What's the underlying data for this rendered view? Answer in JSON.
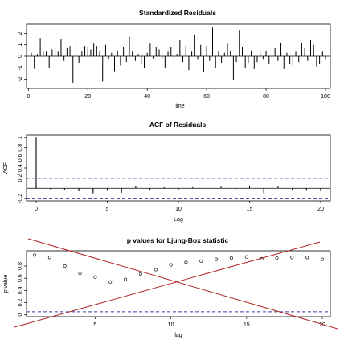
{
  "chart_data": [
    {
      "type": "line",
      "title": "Standardized Residuals",
      "xlabel": "Time",
      "ylabel": "",
      "xlim": [
        1,
        100
      ],
      "ylim": [
        -2.8,
        2.8
      ],
      "x_ticks": [
        0,
        20,
        40,
        60,
        80,
        100
      ],
      "y_ticks": [
        -2,
        -1,
        0,
        1,
        2
      ],
      "style": "vertical spikes from zero with horizontal zero line",
      "x": [
        1,
        2,
        3,
        4,
        5,
        6,
        7,
        8,
        9,
        10,
        11,
        12,
        13,
        14,
        15,
        16,
        17,
        18,
        19,
        20,
        21,
        22,
        23,
        24,
        25,
        26,
        27,
        28,
        29,
        30,
        31,
        32,
        33,
        34,
        35,
        36,
        37,
        38,
        39,
        40,
        41,
        42,
        43,
        44,
        45,
        46,
        47,
        48,
        49,
        50,
        51,
        52,
        53,
        54,
        55,
        56,
        57,
        58,
        59,
        60,
        61,
        62,
        63,
        64,
        65,
        66,
        67,
        68,
        69,
        70,
        71,
        72,
        73,
        74,
        75,
        76,
        77,
        78,
        79,
        80,
        81,
        82,
        83,
        84,
        85,
        86,
        87,
        88,
        89,
        90,
        91,
        92,
        93,
        94,
        95,
        96,
        97,
        98,
        99,
        100
      ],
      "values": [
        0.3,
        -1.1,
        0.2,
        1.6,
        0.5,
        0.4,
        -1.0,
        0.6,
        0.7,
        0.4,
        1.5,
        -0.4,
        0.7,
        0.9,
        -2.3,
        1.2,
        -0.6,
        0.4,
        0.9,
        0.8,
        0.6,
        1.1,
        0.9,
        0.4,
        -2.2,
        1.0,
        -0.3,
        0.3,
        -1.3,
        0.5,
        -0.8,
        0.8,
        -0.5,
        1.7,
        0.4,
        -0.4,
        0.2,
        -0.7,
        -1.0,
        0.3,
        1.1,
        -0.2,
        0.8,
        0.6,
        -0.3,
        -1.0,
        0.4,
        0.8,
        -0.9,
        0.2,
        1.4,
        -0.5,
        0.9,
        -1.2,
        0.4,
        1.9,
        -0.3,
        1.0,
        -1.4,
        0.9,
        -0.4,
        2.5,
        -1.0,
        0.4,
        -0.6,
        0.3,
        1.1,
        0.5,
        -2.1,
        -0.5,
        2.3,
        0.8,
        -1.0,
        -0.6,
        0.5,
        -1.1,
        -0.5,
        0.4,
        -0.3,
        0.5,
        -0.7,
        -0.3,
        0.7,
        -0.4,
        1.2,
        -1.1,
        0.3,
        -0.7,
        -0.8,
        0.4,
        -0.5,
        1.2,
        0.7,
        -0.4,
        1.4,
        1.0,
        -0.9,
        -0.7,
        0.4,
        -0.3
      ]
    },
    {
      "type": "bar",
      "title": "ACF of Residuals",
      "xlabel": "Lag",
      "ylabel": "ACF",
      "xlim": [
        0,
        20
      ],
      "ylim": [
        -0.25,
        1.05
      ],
      "x_ticks": [
        0,
        5,
        10,
        15,
        20
      ],
      "y_ticks": [
        -0.2,
        0.2,
        0.4,
        0.6,
        0.8,
        1.0
      ],
      "confidence_bounds": [
        0.196,
        -0.196
      ],
      "bound_line_color": "#3a3aa8",
      "x": [
        0,
        1,
        2,
        3,
        4,
        5,
        6,
        7,
        8,
        9,
        10,
        11,
        12,
        13,
        14,
        15,
        16,
        17,
        18,
        19,
        20
      ],
      "values": [
        1.0,
        -0.02,
        -0.03,
        -0.06,
        -0.1,
        -0.05,
        -0.09,
        0.05,
        -0.04,
        0.02,
        -0.03,
        0.02,
        -0.02,
        0.03,
        -0.02,
        0.04,
        -0.1,
        0.04,
        -0.03,
        -0.05,
        -0.06
      ]
    },
    {
      "type": "scatter",
      "title": "p values for Ljung-Box statistic",
      "xlabel": "lag",
      "ylabel": "p value",
      "xlim": [
        1,
        20
      ],
      "ylim": [
        -0.03,
        1.05
      ],
      "x_ticks": [
        5,
        10,
        15,
        20
      ],
      "y_ticks": [
        0.0,
        0.2,
        0.4,
        0.6,
        0.8
      ],
      "significance_line": 0.05,
      "bound_line_color": "#3a3aa8",
      "marker": "open circle",
      "x": [
        1,
        2,
        3,
        4,
        5,
        6,
        7,
        8,
        9,
        10,
        11,
        12,
        13,
        14,
        15,
        16,
        17,
        18,
        19,
        20
      ],
      "values": [
        0.98,
        0.94,
        0.8,
        0.68,
        0.62,
        0.54,
        0.58,
        0.67,
        0.74,
        0.82,
        0.86,
        0.88,
        0.91,
        0.93,
        0.95,
        0.92,
        0.93,
        0.94,
        0.94,
        0.91
      ],
      "overlay": "red cross lines over the plot panel",
      "overlay_color": "#b22222"
    }
  ]
}
